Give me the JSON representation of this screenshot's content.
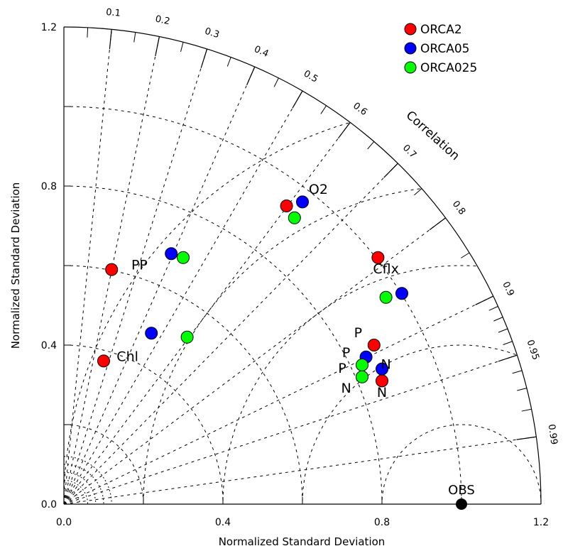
{
  "chart_data": {
    "type": "scatter",
    "title": "",
    "xlabel": "Normalized Standard Deviation",
    "ylabel": "Normalized Standard Deviation",
    "arc_title": "Correlation",
    "xlim": [
      0,
      1.2
    ],
    "ylim": [
      0,
      1.2
    ],
    "x_ticks": [
      0.0,
      0.4,
      0.8,
      1.2
    ],
    "x_tick_labels": [
      "0.0",
      "0.4",
      "0.8",
      "1.2"
    ],
    "y_ticks": [
      0.0,
      0.4,
      0.8,
      1.2
    ],
    "y_tick_labels": [
      "0.0",
      "0.4",
      "0.8",
      "1.2"
    ],
    "correlation_ticks": [
      0.1,
      0.2,
      0.3,
      0.4,
      0.5,
      0.6,
      0.7,
      0.8,
      0.9,
      0.95,
      0.99
    ],
    "correlation_tick_labels": [
      "0.1",
      "0.2",
      "0.3",
      "0.4",
      "0.5",
      "0.6",
      "0.7",
      "0.8",
      "0.9",
      "0.95",
      "0.99"
    ],
    "grid": true,
    "legend_position": "top-right",
    "reference": {
      "label": "OBS",
      "std": 1.0,
      "correlation": 1.0
    },
    "series": [
      {
        "name": "ORCA2",
        "color": "#ff0000",
        "points": [
          {
            "x": 0.1,
            "y": 0.36
          },
          {
            "x": 0.12,
            "y": 0.59
          },
          {
            "x": 0.56,
            "y": 0.75
          },
          {
            "x": 0.79,
            "y": 0.62
          },
          {
            "x": 0.78,
            "y": 0.4
          },
          {
            "x": 0.8,
            "y": 0.31
          }
        ]
      },
      {
        "name": "ORCA05",
        "color": "#0000ff",
        "points": [
          {
            "x": 0.22,
            "y": 0.43
          },
          {
            "x": 0.27,
            "y": 0.63
          },
          {
            "x": 0.6,
            "y": 0.76
          },
          {
            "x": 0.85,
            "y": 0.53
          },
          {
            "x": 0.76,
            "y": 0.37
          },
          {
            "x": 0.8,
            "y": 0.34
          }
        ]
      },
      {
        "name": "ORCA025",
        "color": "#00ff00",
        "points": [
          {
            "x": 0.31,
            "y": 0.42
          },
          {
            "x": 0.3,
            "y": 0.62
          },
          {
            "x": 0.58,
            "y": 0.72
          },
          {
            "x": 0.81,
            "y": 0.52
          },
          {
            "x": 0.75,
            "y": 0.35
          },
          {
            "x": 0.75,
            "y": 0.32
          }
        ]
      }
    ],
    "point_labels": [
      {
        "text": "Chl",
        "x": 0.16,
        "y": 0.36
      },
      {
        "text": "PP",
        "x": 0.19,
        "y": 0.59
      },
      {
        "text": "O2",
        "x": 0.64,
        "y": 0.78
      },
      {
        "text": "Cflx",
        "x": 0.81,
        "y": 0.58
      },
      {
        "text": "P",
        "x": 0.74,
        "y": 0.42
      },
      {
        "text": "P",
        "x": 0.71,
        "y": 0.37
      },
      {
        "text": "P",
        "x": 0.7,
        "y": 0.33
      },
      {
        "text": "N",
        "x": 0.81,
        "y": 0.34
      },
      {
        "text": "N",
        "x": 0.71,
        "y": 0.28
      },
      {
        "text": "N",
        "x": 0.8,
        "y": 0.27
      }
    ]
  }
}
